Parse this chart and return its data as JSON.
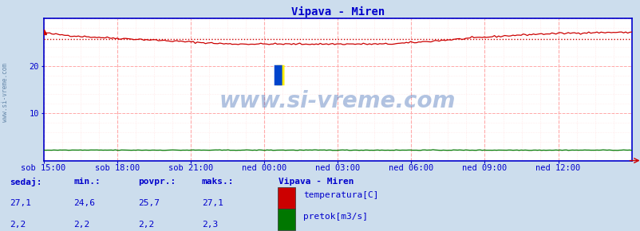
{
  "title": "Vipava - Miren",
  "bg_color": "#ccdded",
  "plot_bg_color": "#ffffff",
  "x_labels": [
    "sob 15:00",
    "sob 18:00",
    "sob 21:00",
    "ned 00:00",
    "ned 03:00",
    "ned 06:00",
    "ned 09:00",
    "ned 12:00"
  ],
  "n_points": 288,
  "ylim": [
    0,
    30
  ],
  "yticks": [
    10,
    20
  ],
  "temp_min": 24.6,
  "temp_max": 27.1,
  "temp_avg": 25.7,
  "temp_current": 27.1,
  "flow_min": 2.2,
  "flow_max": 2.3,
  "flow_avg": 2.2,
  "flow_current": 2.2,
  "temp_color": "#cc0000",
  "flow_color": "#007700",
  "avg_line_color": "#cc0000",
  "grid_major_color": "#ffaaaa",
  "grid_minor_color": "#ffdddd",
  "axis_color": "#0000cc",
  "text_color": "#0000cc",
  "watermark": "www.si-vreme.com",
  "sidebar_text": "www.si-vreme.com",
  "legend_title": "Vipava - Miren",
  "legend_items": [
    "temperatura[C]",
    "pretok[m3/s]"
  ],
  "legend_colors": [
    "#cc0000",
    "#007700"
  ],
  "stats_labels": [
    "sedaj:",
    "min.:",
    "povpr.:",
    "maks.:"
  ],
  "stats_temp": [
    "27,1",
    "24,6",
    "25,7",
    "27,1"
  ],
  "stats_flow": [
    "2,2",
    "2,2",
    "2,2",
    "2,3"
  ]
}
